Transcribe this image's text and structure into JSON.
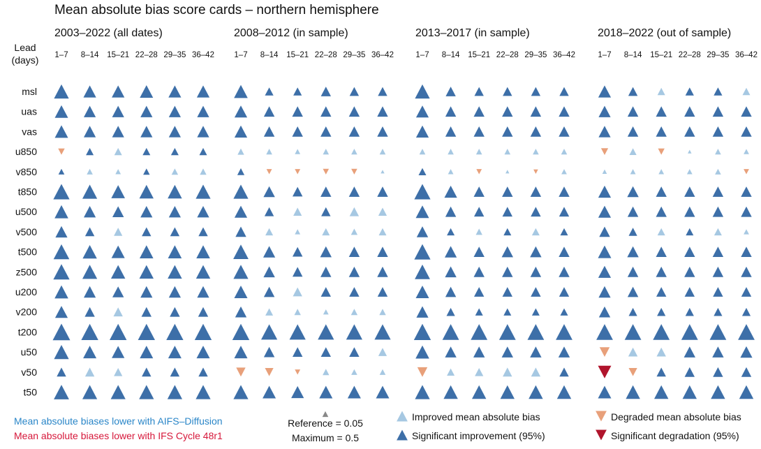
{
  "chart_data": {
    "type": "table",
    "title": "Mean absolute bias score cards – northern hemisphere",
    "row_header": "Lead\n(days)",
    "panels": [
      "2003–2022 (all dates)",
      "2008–2012 (in sample)",
      "2013–2017 (in sample)",
      "2018–2022 (out of sample)"
    ],
    "lead_times": [
      "1–7",
      "8–14",
      "15–21",
      "22–28",
      "29–35",
      "36–42"
    ],
    "variables": [
      "msl",
      "uas",
      "vas",
      "u850",
      "v850",
      "t850",
      "u500",
      "v500",
      "t500",
      "z500",
      "u200",
      "v200",
      "t200",
      "u50",
      "v50",
      "t50"
    ],
    "encoding": {
      "value_meaning": "normalized change in mean absolute bias; positive = improvement with AIFS-Diffusion, negative = degradation",
      "status_codes": {
        "S": "significant",
        "N": "not significant"
      }
    },
    "values": [
      [
        [
          0.3,
          0.22,
          0.22,
          0.24,
          0.22,
          0.22
        ],
        [
          0.26,
          0.1,
          0.1,
          0.14,
          0.12,
          0.12
        ],
        [
          0.3,
          0.14,
          0.12,
          0.12,
          0.12,
          0.12
        ],
        [
          0.22,
          0.12,
          0.08,
          0.1,
          0.1,
          0.08
        ]
      ],
      [
        [
          0.24,
          0.2,
          0.2,
          0.2,
          0.2,
          0.2
        ],
        [
          0.22,
          0.16,
          0.16,
          0.16,
          0.16,
          0.16
        ],
        [
          0.22,
          0.16,
          0.16,
          0.16,
          0.16,
          0.16
        ],
        [
          0.2,
          0.16,
          0.16,
          0.16,
          0.16,
          0.16
        ]
      ],
      [
        [
          0.24,
          0.2,
          0.2,
          0.2,
          0.2,
          0.2
        ],
        [
          0.22,
          0.16,
          0.16,
          0.16,
          0.16,
          0.16
        ],
        [
          0.22,
          0.16,
          0.16,
          0.16,
          0.16,
          0.16
        ],
        [
          0.2,
          0.16,
          0.16,
          0.16,
          0.16,
          0.16
        ]
      ],
      [
        [
          -0.06,
          0.08,
          0.08,
          0.08,
          0.08,
          0.08
        ],
        [
          0.06,
          0.05,
          0.04,
          0.05,
          0.05,
          0.05
        ],
        [
          0.05,
          0.05,
          0.05,
          0.05,
          0.05,
          0.05
        ],
        [
          -0.07,
          0.07,
          -0.06,
          0.02,
          0.05,
          0.04
        ]
      ],
      [
        [
          0.05,
          0.05,
          0.04,
          0.06,
          0.06,
          0.06
        ],
        [
          0.07,
          -0.04,
          -0.04,
          -0.05,
          -0.05,
          0.02
        ],
        [
          0.08,
          0.04,
          -0.04,
          0.02,
          -0.03,
          0.04
        ],
        [
          0.03,
          0.04,
          0.04,
          0.04,
          0.05,
          -0.04
        ]
      ],
      [
        [
          0.36,
          0.3,
          0.26,
          0.28,
          0.28,
          0.3
        ],
        [
          0.3,
          0.18,
          0.14,
          0.16,
          0.16,
          0.16
        ],
        [
          0.36,
          0.22,
          0.16,
          0.16,
          0.16,
          0.16
        ],
        [
          0.22,
          0.18,
          0.16,
          0.16,
          0.16,
          0.16
        ]
      ],
      [
        [
          0.26,
          0.2,
          0.18,
          0.2,
          0.2,
          0.2
        ],
        [
          0.22,
          0.12,
          0.1,
          0.12,
          0.12,
          0.1
        ],
        [
          0.24,
          0.16,
          0.14,
          0.14,
          0.14,
          0.14
        ],
        [
          0.22,
          0.16,
          0.16,
          0.16,
          0.16,
          0.16
        ]
      ],
      [
        [
          0.2,
          0.12,
          0.1,
          0.12,
          0.12,
          0.12
        ],
        [
          0.16,
          0.08,
          0.04,
          0.08,
          0.06,
          0.08
        ],
        [
          0.18,
          0.08,
          0.06,
          0.08,
          0.08,
          0.08
        ],
        [
          0.16,
          0.1,
          0.08,
          0.08,
          0.08,
          0.04
        ]
      ],
      [
        [
          0.34,
          0.28,
          0.24,
          0.26,
          0.26,
          0.26
        ],
        [
          0.32,
          0.2,
          0.14,
          0.18,
          0.16,
          0.16
        ],
        [
          0.36,
          0.2,
          0.16,
          0.18,
          0.18,
          0.16
        ],
        [
          0.24,
          0.18,
          0.16,
          0.16,
          0.16,
          0.16
        ]
      ],
      [
        [
          0.36,
          0.3,
          0.28,
          0.28,
          0.28,
          0.28
        ],
        [
          0.3,
          0.18,
          0.14,
          0.16,
          0.16,
          0.16
        ],
        [
          0.32,
          0.18,
          0.16,
          0.16,
          0.16,
          0.16
        ],
        [
          0.22,
          0.16,
          0.16,
          0.16,
          0.16,
          0.16
        ]
      ],
      [
        [
          0.26,
          0.2,
          0.18,
          0.2,
          0.2,
          0.2
        ],
        [
          0.24,
          0.16,
          0.12,
          0.14,
          0.14,
          0.14
        ],
        [
          0.24,
          0.16,
          0.14,
          0.14,
          0.14,
          0.14
        ],
        [
          0.2,
          0.16,
          0.14,
          0.14,
          0.14,
          0.14
        ]
      ],
      [
        [
          0.22,
          0.14,
          0.12,
          0.14,
          0.14,
          0.14
        ],
        [
          0.18,
          0.08,
          0.06,
          0.04,
          0.06,
          0.06
        ],
        [
          0.2,
          0.1,
          0.08,
          0.08,
          0.08,
          0.08
        ],
        [
          0.18,
          0.1,
          0.1,
          0.1,
          0.1,
          0.1
        ]
      ],
      [
        [
          0.42,
          0.4,
          0.4,
          0.4,
          0.4,
          0.4
        ],
        [
          0.4,
          0.36,
          0.36,
          0.36,
          0.36,
          0.36
        ],
        [
          0.4,
          0.38,
          0.38,
          0.38,
          0.38,
          0.38
        ],
        [
          0.38,
          0.38,
          0.38,
          0.38,
          0.38,
          0.38
        ]
      ],
      [
        [
          0.3,
          0.24,
          0.22,
          0.24,
          0.24,
          0.24
        ],
        [
          0.24,
          0.16,
          0.14,
          0.14,
          0.14,
          0.1
        ],
        [
          0.26,
          0.18,
          0.18,
          0.18,
          0.18,
          0.18
        ],
        [
          -0.14,
          0.12,
          0.12,
          0.18,
          0.18,
          0.2
        ]
      ],
      [
        [
          0.12,
          0.12,
          0.1,
          0.12,
          0.12,
          0.12
        ],
        [
          -0.12,
          -0.1,
          -0.04,
          0.06,
          0.05,
          0.05
        ],
        [
          -0.14,
          0.08,
          0.1,
          0.12,
          0.12,
          0.12
        ],
        [
          -0.24,
          -0.1,
          0.12,
          0.14,
          0.14,
          0.14
        ]
      ],
      [
        [
          0.32,
          0.3,
          0.3,
          0.3,
          0.3,
          0.3
        ],
        [
          0.3,
          0.24,
          0.22,
          0.24,
          0.24,
          0.24
        ],
        [
          0.3,
          0.28,
          0.28,
          0.28,
          0.28,
          0.28
        ],
        [
          0.24,
          0.28,
          0.28,
          0.28,
          0.28,
          0.28
        ]
      ]
    ],
    "status": [
      [
        [
          "S",
          "S",
          "S",
          "S",
          "S",
          "S"
        ],
        [
          "S",
          "S",
          "S",
          "S",
          "S",
          "S"
        ],
        [
          "S",
          "S",
          "S",
          "S",
          "S",
          "S"
        ],
        [
          "S",
          "S",
          "N",
          "S",
          "S",
          "N"
        ]
      ],
      [
        [
          "S",
          "S",
          "S",
          "S",
          "S",
          "S"
        ],
        [
          "S",
          "S",
          "S",
          "S",
          "S",
          "S"
        ],
        [
          "S",
          "S",
          "S",
          "S",
          "S",
          "S"
        ],
        [
          "S",
          "S",
          "S",
          "S",
          "S",
          "S"
        ]
      ],
      [
        [
          "S",
          "S",
          "S",
          "S",
          "S",
          "S"
        ],
        [
          "S",
          "S",
          "S",
          "S",
          "S",
          "S"
        ],
        [
          "S",
          "S",
          "S",
          "S",
          "S",
          "S"
        ],
        [
          "S",
          "S",
          "S",
          "S",
          "S",
          "S"
        ]
      ],
      [
        [
          "N",
          "S",
          "N",
          "S",
          "S",
          "S"
        ],
        [
          "N",
          "N",
          "N",
          "N",
          "N",
          "N"
        ],
        [
          "N",
          "N",
          "N",
          "N",
          "N",
          "N"
        ],
        [
          "N",
          "N",
          "N",
          "N",
          "N",
          "N"
        ]
      ],
      [
        [
          "S",
          "N",
          "N",
          "S",
          "N",
          "N"
        ],
        [
          "S",
          "N",
          "N",
          "N",
          "N",
          "N"
        ],
        [
          "S",
          "N",
          "N",
          "N",
          "N",
          "N"
        ],
        [
          "N",
          "N",
          "N",
          "N",
          "N",
          "N"
        ]
      ],
      [
        [
          "S",
          "S",
          "S",
          "S",
          "S",
          "S"
        ],
        [
          "S",
          "S",
          "S",
          "S",
          "S",
          "S"
        ],
        [
          "S",
          "S",
          "S",
          "S",
          "S",
          "S"
        ],
        [
          "S",
          "S",
          "S",
          "S",
          "S",
          "S"
        ]
      ],
      [
        [
          "S",
          "S",
          "S",
          "S",
          "S",
          "S"
        ],
        [
          "S",
          "S",
          "N",
          "S",
          "N",
          "N"
        ],
        [
          "S",
          "S",
          "S",
          "S",
          "S",
          "S"
        ],
        [
          "S",
          "S",
          "S",
          "S",
          "S",
          "S"
        ]
      ],
      [
        [
          "S",
          "S",
          "N",
          "S",
          "S",
          "S"
        ],
        [
          "S",
          "N",
          "N",
          "N",
          "N",
          "N"
        ],
        [
          "S",
          "S",
          "N",
          "S",
          "N",
          "S"
        ],
        [
          "S",
          "S",
          "N",
          "S",
          "N",
          "N"
        ]
      ],
      [
        [
          "S",
          "S",
          "S",
          "S",
          "S",
          "S"
        ],
        [
          "S",
          "S",
          "S",
          "S",
          "S",
          "S"
        ],
        [
          "S",
          "S",
          "S",
          "S",
          "S",
          "S"
        ],
        [
          "S",
          "S",
          "S",
          "S",
          "S",
          "S"
        ]
      ],
      [
        [
          "S",
          "S",
          "S",
          "S",
          "S",
          "S"
        ],
        [
          "S",
          "S",
          "S",
          "S",
          "S",
          "S"
        ],
        [
          "S",
          "S",
          "S",
          "S",
          "S",
          "S"
        ],
        [
          "S",
          "S",
          "S",
          "S",
          "S",
          "S"
        ]
      ],
      [
        [
          "S",
          "S",
          "S",
          "S",
          "S",
          "S"
        ],
        [
          "S",
          "S",
          "N",
          "S",
          "S",
          "S"
        ],
        [
          "S",
          "S",
          "S",
          "S",
          "S",
          "S"
        ],
        [
          "S",
          "S",
          "S",
          "S",
          "S",
          "S"
        ]
      ],
      [
        [
          "S",
          "S",
          "N",
          "S",
          "S",
          "S"
        ],
        [
          "S",
          "N",
          "N",
          "N",
          "N",
          "N"
        ],
        [
          "S",
          "S",
          "S",
          "S",
          "S",
          "S"
        ],
        [
          "S",
          "S",
          "S",
          "S",
          "S",
          "S"
        ]
      ],
      [
        [
          "S",
          "S",
          "S",
          "S",
          "S",
          "S"
        ],
        [
          "S",
          "S",
          "S",
          "S",
          "S",
          "S"
        ],
        [
          "S",
          "S",
          "S",
          "S",
          "S",
          "S"
        ],
        [
          "S",
          "S",
          "S",
          "S",
          "S",
          "S"
        ]
      ],
      [
        [
          "S",
          "S",
          "S",
          "S",
          "S",
          "S"
        ],
        [
          "S",
          "S",
          "S",
          "S",
          "S",
          "N"
        ],
        [
          "S",
          "S",
          "S",
          "S",
          "S",
          "S"
        ],
        [
          "N",
          "N",
          "N",
          "S",
          "S",
          "S"
        ]
      ],
      [
        [
          "S",
          "N",
          "N",
          "S",
          "S",
          "S"
        ],
        [
          "N",
          "N",
          "N",
          "N",
          "N",
          "N"
        ],
        [
          "N",
          "N",
          "N",
          "N",
          "N",
          "S"
        ],
        [
          "S",
          "N",
          "S",
          "S",
          "S",
          "S"
        ]
      ],
      [
        [
          "S",
          "S",
          "S",
          "S",
          "S",
          "S"
        ],
        [
          "S",
          "S",
          "S",
          "S",
          "S",
          "S"
        ],
        [
          "S",
          "S",
          "S",
          "S",
          "S",
          "S"
        ],
        [
          "S",
          "S",
          "S",
          "S",
          "S",
          "S"
        ]
      ]
    ],
    "colors": {
      "improved": "#a6c8e2",
      "significant_improvement": "#3d6fa8",
      "degraded": "#e8a07a",
      "significant_degradation": "#b0142c",
      "reference": "#888888"
    },
    "legend": {
      "aifs_note": "Mean absolute biases lower with AIFS–Diffusion",
      "ifs_note": "Mean absolute biases lower with IFS Cycle 48r1",
      "aifs_color": "#2a86c8",
      "ifs_color": "#d6173a",
      "reference_label": "Reference = 0.05",
      "maximum_label": "Maximum = 0.5",
      "improved": "Improved mean absolute bias",
      "significant_improvement": "Significant improvement (95%)",
      "degraded": "Degraded mean absolute bias",
      "significant_degradation": "Significant degradation (95%)"
    }
  }
}
